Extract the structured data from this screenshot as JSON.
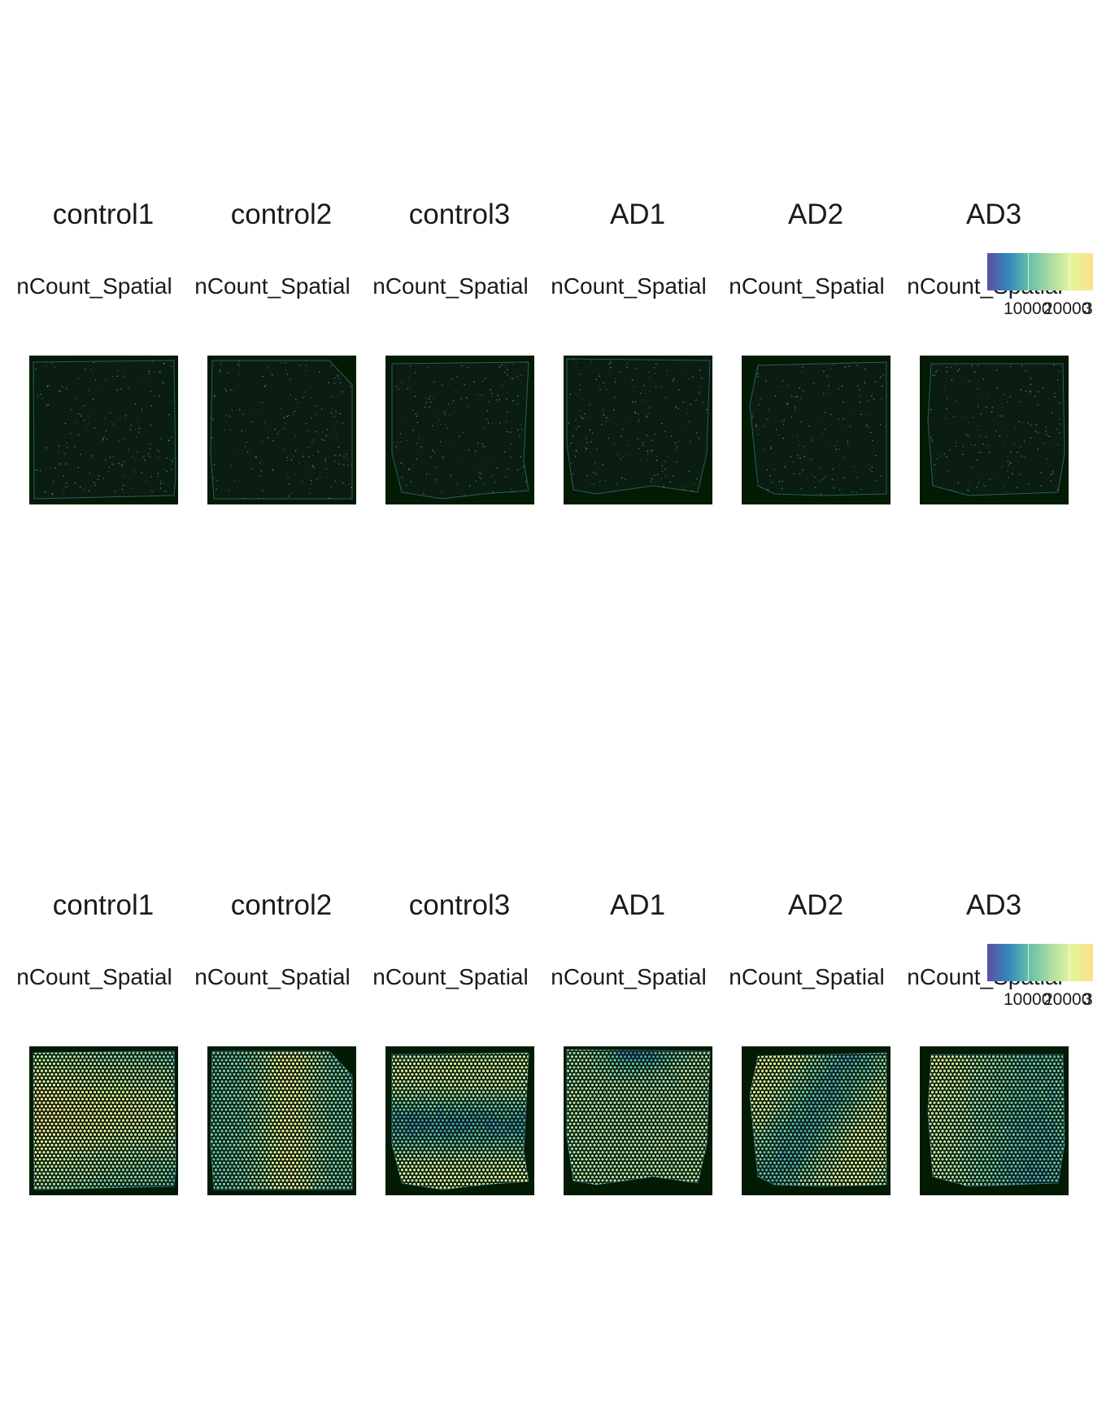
{
  "chart_data": [
    {
      "type": "heatmap",
      "title": "",
      "samples": [
        "control1",
        "control2",
        "control3",
        "AD1",
        "AD2",
        "AD3"
      ],
      "feature_label": "nCount_Spatial",
      "spot_overlay": false,
      "colorscale": [
        "#5e4fa2",
        "#3288bd",
        "#66c2a5",
        "#abdda4",
        "#e6f598",
        "#fee08b"
      ],
      "colorbar_ticks": [
        "10000",
        "20000",
        "3"
      ],
      "background": "#031a03"
    },
    {
      "type": "heatmap",
      "title": "",
      "samples": [
        "control1",
        "control2",
        "control3",
        "AD1",
        "AD2",
        "AD3"
      ],
      "feature_label": "nCount_Spatial",
      "spot_overlay": true,
      "colorscale": [
        "#5e4fa2",
        "#3288bd",
        "#66c2a5",
        "#abdda4",
        "#e6f598",
        "#fee08b"
      ],
      "colorbar_ticks": [
        "10000",
        "20000",
        "3"
      ],
      "background": "#031a03"
    }
  ]
}
